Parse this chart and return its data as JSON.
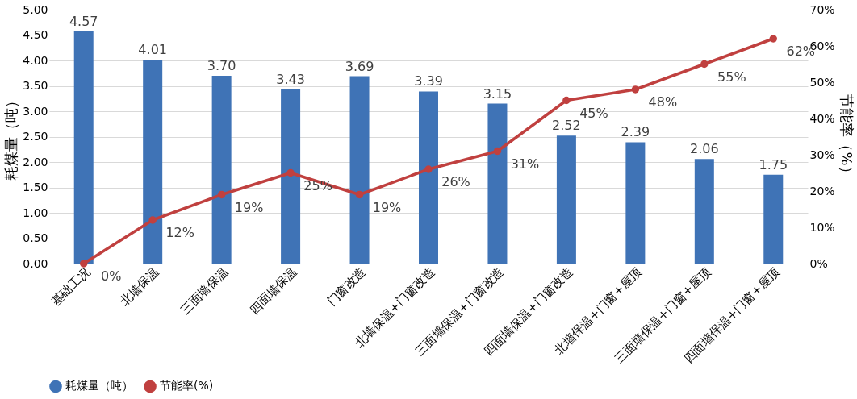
{
  "chart_data": {
    "type": "bar",
    "categories": [
      "基础工况",
      "北墙保温",
      "三面墙保温",
      "四面墙保温",
      "门窗改造",
      "北墙保温+门窗改造",
      "三面墙保温+门窗改造",
      "四面墙保温+门窗改造",
      "北墙保温+门窗+屋顶",
      "三面墙保温+门窗+屋顶",
      "四面墙保温+门窗+屋顶"
    ],
    "ylabel": "耗煤量（吨）",
    "y2label": "节能率（%）",
    "series": [
      {
        "name": "耗煤量（吨）",
        "color": "#3f73b6",
        "values": [
          4.57,
          4.01,
          3.7,
          3.43,
          3.69,
          3.39,
          3.15,
          2.52,
          2.39,
          2.06,
          1.75
        ],
        "value_labels": [
          "4.57",
          "4.01",
          "3.70",
          "3.43",
          "3.69",
          "3.39",
          "3.15",
          "2.52",
          "2.39",
          "2.06",
          "1.75"
        ]
      },
      {
        "name": "节能率(%)",
        "type": "line",
        "axis": "y2",
        "color": "#c0403f",
        "marker": "circle",
        "values": [
          0,
          12,
          19,
          25,
          19,
          26,
          31,
          45,
          48,
          55,
          62
        ],
        "value_labels": [
          "0%",
          "12%",
          "19%",
          "25%",
          "19%",
          "26%",
          "31%",
          "45%",
          "48%",
          "55%",
          "62%"
        ]
      }
    ],
    "ylim": [
      0,
      5
    ],
    "yticks": [
      {
        "value": 0,
        "label": "0.00"
      },
      {
        "value": 0.5,
        "label": "0.50"
      },
      {
        "value": 1,
        "label": "1.00"
      },
      {
        "value": 1.5,
        "label": "1.50"
      },
      {
        "value": 2,
        "label": "2.00"
      },
      {
        "value": 2.5,
        "label": "2.50"
      },
      {
        "value": 3,
        "label": "3.00"
      },
      {
        "value": 3.5,
        "label": "3.50"
      },
      {
        "value": 4,
        "label": "4.00"
      },
      {
        "value": 4.5,
        "label": "4.50"
      },
      {
        "value": 5,
        "label": "5.00"
      }
    ],
    "y2lim": [
      0,
      70
    ],
    "y2ticks": [
      {
        "value": 0,
        "label": "0%"
      },
      {
        "value": 10,
        "label": "10%"
      },
      {
        "value": 20,
        "label": "20%"
      },
      {
        "value": 30,
        "label": "30%"
      },
      {
        "value": 40,
        "label": "40%"
      },
      {
        "value": 50,
        "label": "50%"
      },
      {
        "value": 60,
        "label": "60%"
      },
      {
        "value": 70,
        "label": "70%"
      }
    ],
    "grid": "y",
    "legend": "bottom"
  }
}
